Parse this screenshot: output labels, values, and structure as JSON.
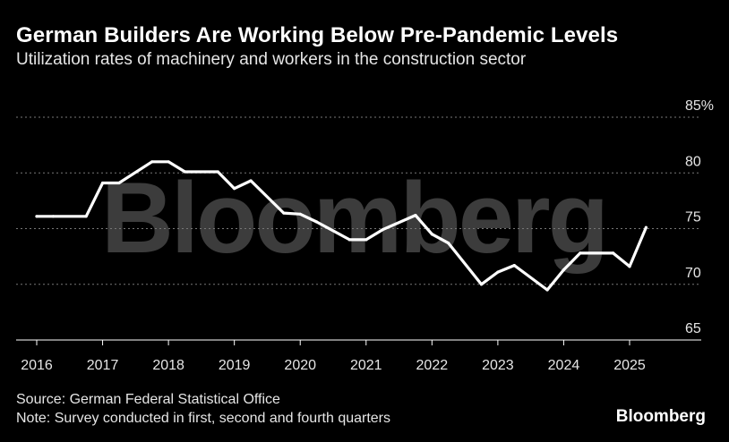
{
  "title": "German Builders Are Working Below Pre-Pandemic Levels",
  "subtitle": "Utilization rates of machinery and workers in the construction sector",
  "source": "Source: German Federal Statistical Office",
  "note": "Note: Survey conducted in first, second and fourth quarters",
  "brand": "Bloomberg",
  "watermark": "Bloomberg",
  "colors": {
    "background": "#000000",
    "line": "#ffffff",
    "grid": "#777777",
    "axis": "#ffffff",
    "watermark": "#3c3c3c"
  },
  "chart_data": {
    "type": "line",
    "title": "German Builders Are Working Below Pre-Pandemic Levels",
    "xlabel": "",
    "ylabel": "",
    "xlim": [
      2016,
      2025.9
    ],
    "ylim": [
      65,
      85
    ],
    "y_ticks": [
      {
        "value": 65,
        "label": "65"
      },
      {
        "value": 70,
        "label": "70"
      },
      {
        "value": 75,
        "label": "75"
      },
      {
        "value": 80,
        "label": "80"
      },
      {
        "value": 85,
        "label": "85%"
      }
    ],
    "x_ticks": [
      {
        "value": 2016,
        "label": "2016"
      },
      {
        "value": 2017,
        "label": "2017"
      },
      {
        "value": 2018,
        "label": "2018"
      },
      {
        "value": 2019,
        "label": "2019"
      },
      {
        "value": 2020,
        "label": "2020"
      },
      {
        "value": 2021,
        "label": "2021"
      },
      {
        "value": 2022,
        "label": "2022"
      },
      {
        "value": 2023,
        "label": "2023"
      },
      {
        "value": 2024,
        "label": "2024"
      },
      {
        "value": 2025,
        "label": "2025"
      }
    ],
    "grid": true,
    "series": [
      {
        "name": "Utilization rate",
        "x": [
          2016,
          2016.25,
          2016.75,
          2017,
          2017.25,
          2017.75,
          2018,
          2018.25,
          2018.75,
          2019,
          2019.25,
          2019.75,
          2020,
          2020.25,
          2020.75,
          2021,
          2021.25,
          2021.75,
          2022,
          2022.25,
          2022.75,
          2023,
          2023.25,
          2023.75,
          2024,
          2024.25,
          2024.75,
          2025,
          2025.25
        ],
        "values": [
          76.1,
          76.1,
          76.1,
          79.1,
          79.1,
          81.0,
          81.0,
          80.1,
          80.1,
          78.6,
          79.3,
          76.4,
          76.3,
          75.6,
          74.0,
          74.0,
          74.9,
          76.2,
          74.5,
          73.7,
          70.0,
          71.1,
          71.7,
          69.5,
          71.3,
          72.8,
          72.8,
          71.6,
          75.1
        ]
      }
    ]
  }
}
